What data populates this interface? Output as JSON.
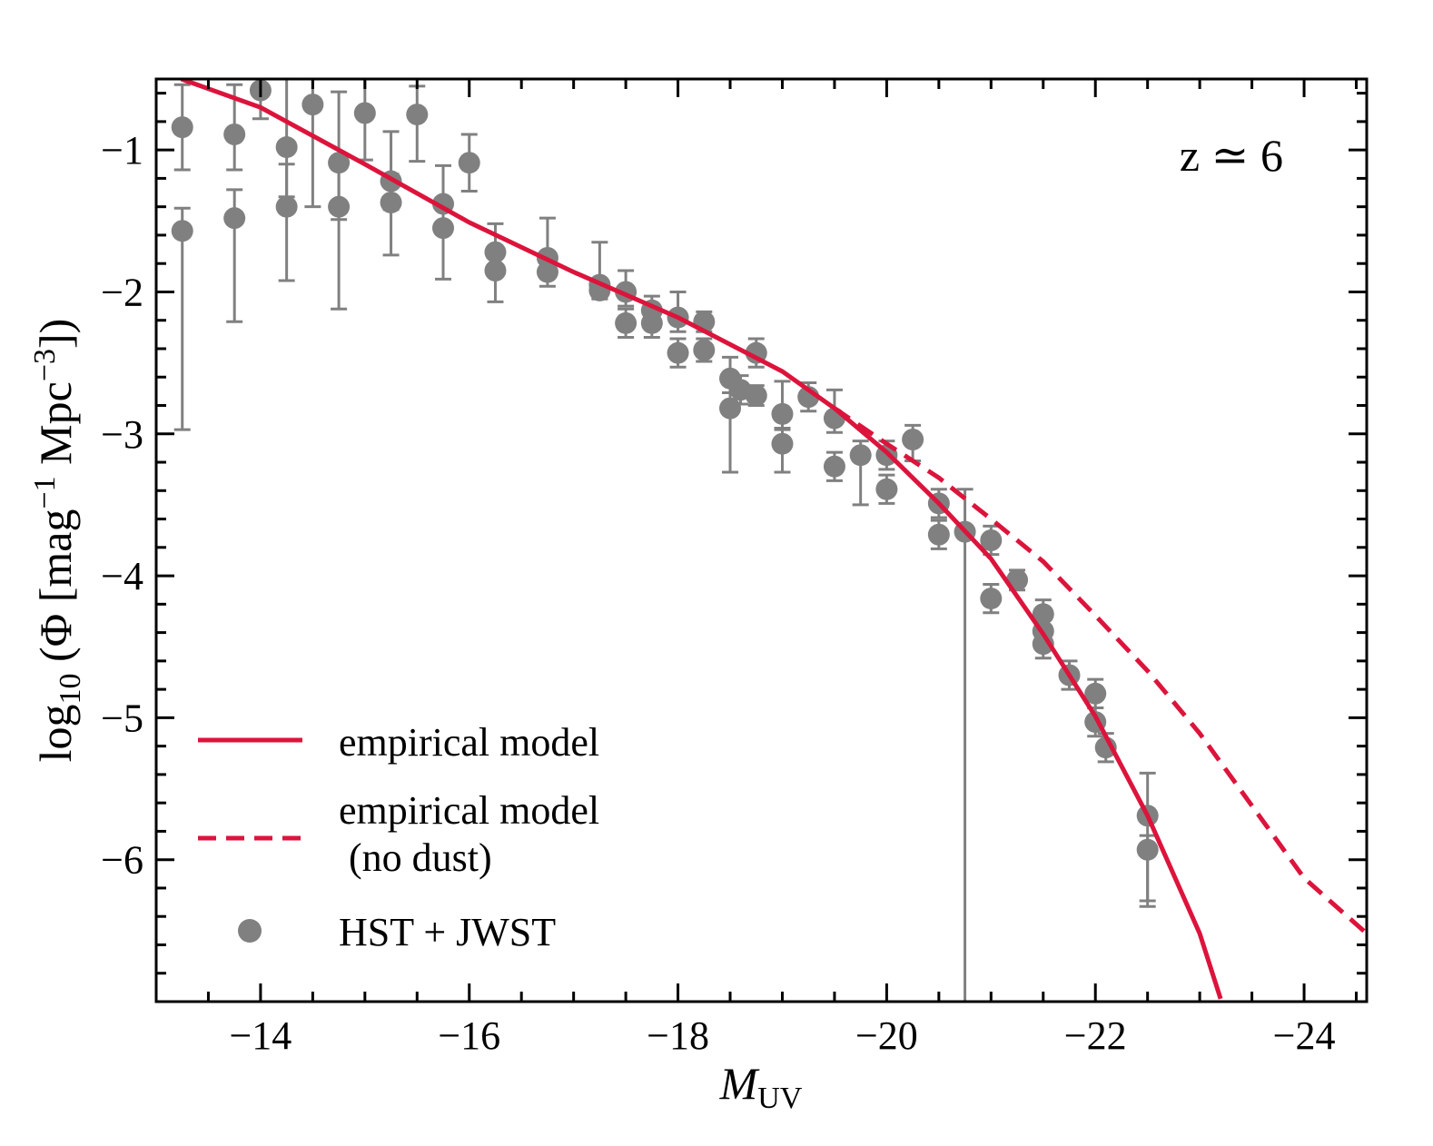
{
  "chart_data": {
    "type": "line",
    "annotation": "z ≃ 6",
    "xlabel": {
      "main": "M",
      "sub": "UV"
    },
    "ylabel": [
      {
        "text": "log",
        "pos": "base"
      },
      {
        "text": "10",
        "pos": "sub"
      },
      {
        "text": " (Φ [mag",
        "pos": "base"
      },
      {
        "text": "−1",
        "pos": "sup"
      },
      {
        "text": " Mpc",
        "pos": "base"
      },
      {
        "text": "−3",
        "pos": "sup"
      },
      {
        "text": "])",
        "pos": "base"
      }
    ],
    "xlim": [
      -13,
      -24.6
    ],
    "ylim": [
      -7,
      -0.5
    ],
    "xticks": [
      {
        "value": -14,
        "label": "−14"
      },
      {
        "value": -16,
        "label": "−16"
      },
      {
        "value": -18,
        "label": "−18"
      },
      {
        "value": -20,
        "label": "−20"
      },
      {
        "value": -22,
        "label": "−22"
      },
      {
        "value": -24,
        "label": "−24"
      }
    ],
    "yticks": [
      {
        "value": -1,
        "label": "−1"
      },
      {
        "value": -2,
        "label": "−2"
      },
      {
        "value": -3,
        "label": "−3"
      },
      {
        "value": -4,
        "label": "−4"
      },
      {
        "value": -5,
        "label": "−5"
      },
      {
        "value": -6,
        "label": "−6"
      }
    ],
    "xticks_minor": [
      -13.5,
      -14.5,
      -15,
      -15.5,
      -16.5,
      -17,
      -17.5,
      -18.5,
      -19,
      -19.5,
      -20.5,
      -21,
      -21.5,
      -22.5,
      -23,
      -23.5,
      -24.5
    ],
    "yticks_minor": [
      -0.6,
      -0.8,
      -1.2,
      -1.4,
      -1.6,
      -1.8,
      -2.2,
      -2.4,
      -2.6,
      -2.8,
      -3.2,
      -3.4,
      -3.6,
      -3.8,
      -4.2,
      -4.4,
      -4.6,
      -4.8,
      -5.2,
      -5.4,
      -5.6,
      -5.8,
      -6.2,
      -6.4,
      -6.6,
      -6.8
    ],
    "series": [
      {
        "name": "empirical model",
        "color": "#dc143c",
        "style": "solid",
        "x": [
          -13.24,
          -14,
          -15,
          -16,
          -17,
          -18,
          -19,
          -19.5,
          -20,
          -20.5,
          -21,
          -21.5,
          -22,
          -22.5,
          -23,
          -23.2
        ],
        "values": [
          -0.5,
          -0.7,
          -1.1,
          -1.51,
          -1.86,
          -2.18,
          -2.56,
          -2.82,
          -3.13,
          -3.49,
          -3.88,
          -4.41,
          -4.99,
          -5.69,
          -6.52,
          -6.98
        ]
      },
      {
        "name": "empirical model\n (no dust)",
        "color": "#dc143c",
        "style": "dashed",
        "x": [
          -19.5,
          -20,
          -20.5,
          -21,
          -21.5,
          -22,
          -22.5,
          -23,
          -23.5,
          -24,
          -24.6
        ],
        "values": [
          -2.82,
          -3.07,
          -3.31,
          -3.6,
          -3.9,
          -4.28,
          -4.67,
          -5.11,
          -5.62,
          -6.13,
          -6.52
        ]
      }
    ],
    "points": {
      "name": "HST + JWST",
      "color": "#808080",
      "x": [
        -13.25,
        -13.25,
        -13.75,
        -13.75,
        -14.0,
        -14.25,
        -14.25,
        -14.5,
        -14.75,
        -14.75,
        -15.0,
        -15.25,
        -15.25,
        -15.5,
        -15.75,
        -15.75,
        -16.0,
        -16.25,
        -16.25,
        -16.75,
        -16.75,
        -17.25,
        -17.25,
        -17.5,
        -17.5,
        -17.75,
        -17.75,
        -18.0,
        -18.0,
        -18.25,
        -18.25,
        -18.5,
        -18.5,
        -18.6,
        -18.75,
        -18.75,
        -19.0,
        -19.0,
        -19.25,
        -19.5,
        -19.5,
        -19.75,
        -20.0,
        -20.0,
        -20.25,
        -20.5,
        -20.5,
        -20.75,
        -21.0,
        -21.0,
        -21.25,
        -21.5,
        -21.5,
        -21.5,
        -21.75,
        -22.0,
        -22.0,
        -22.1,
        -22.5,
        -22.5
      ],
      "values": [
        -0.84,
        -1.57,
        -0.89,
        -1.48,
        -0.58,
        -0.98,
        -1.4,
        -0.68,
        -1.09,
        -1.4,
        -0.74,
        -1.22,
        -1.37,
        -0.75,
        -1.38,
        -1.55,
        -1.09,
        -1.72,
        -1.85,
        -1.76,
        -1.86,
        -1.95,
        -1.99,
        -2.0,
        -2.22,
        -2.13,
        -2.22,
        -2.18,
        -2.43,
        -2.21,
        -2.41,
        -2.61,
        -2.82,
        -2.69,
        -2.43,
        -2.73,
        -2.86,
        -3.07,
        -2.74,
        -2.89,
        -3.23,
        -3.15,
        -3.15,
        -3.39,
        -3.04,
        -3.49,
        -3.71,
        -3.69,
        -3.75,
        -4.16,
        -4.03,
        -4.27,
        -4.39,
        -4.48,
        -4.7,
        -4.83,
        -5.03,
        -5.21,
        -5.69,
        -5.93
      ],
      "err_low": [
        0.3,
        1.4,
        0.25,
        0.73,
        0.2,
        0.35,
        0.52,
        0.72,
        0.4,
        0.72,
        0.33,
        0.2,
        0.37,
        0.33,
        0.2,
        0.36,
        0.2,
        0.15,
        0.22,
        0.1,
        0.1,
        0.1,
        0.05,
        0.1,
        0.1,
        0.1,
        0.1,
        0.1,
        0.1,
        0.07,
        0.08,
        0.1,
        0.45,
        0.1,
        0.1,
        0.07,
        0.1,
        0.2,
        0.1,
        0.1,
        0.1,
        0.35,
        0.1,
        0.1,
        0.15,
        0.1,
        0.1,
        3.31,
        0.1,
        0.1,
        0.07,
        0.1,
        0.1,
        0.1,
        0.1,
        0.1,
        0.1,
        0.1,
        0.6,
        0.4
      ],
      "err_high": [
        0.3,
        0.16,
        0.35,
        0.2,
        0.1,
        0.5,
        0.3,
        0.2,
        0.5,
        0.3,
        0.3,
        0.35,
        0.2,
        0.2,
        0.27,
        0.2,
        0.2,
        0.2,
        0.15,
        0.28,
        0.1,
        0.3,
        0.05,
        0.15,
        0.1,
        0.1,
        0.1,
        0.18,
        0.1,
        0.07,
        0.08,
        0.15,
        0.2,
        0.1,
        0.1,
        0.07,
        0.23,
        0.1,
        0.1,
        0.2,
        0.1,
        0.1,
        0.1,
        0.1,
        0.1,
        0.1,
        0.1,
        0.3,
        0.1,
        0.1,
        0.07,
        0.1,
        0.1,
        0.1,
        0.1,
        0.1,
        0.1,
        0.1,
        0.3,
        0.1
      ]
    }
  }
}
